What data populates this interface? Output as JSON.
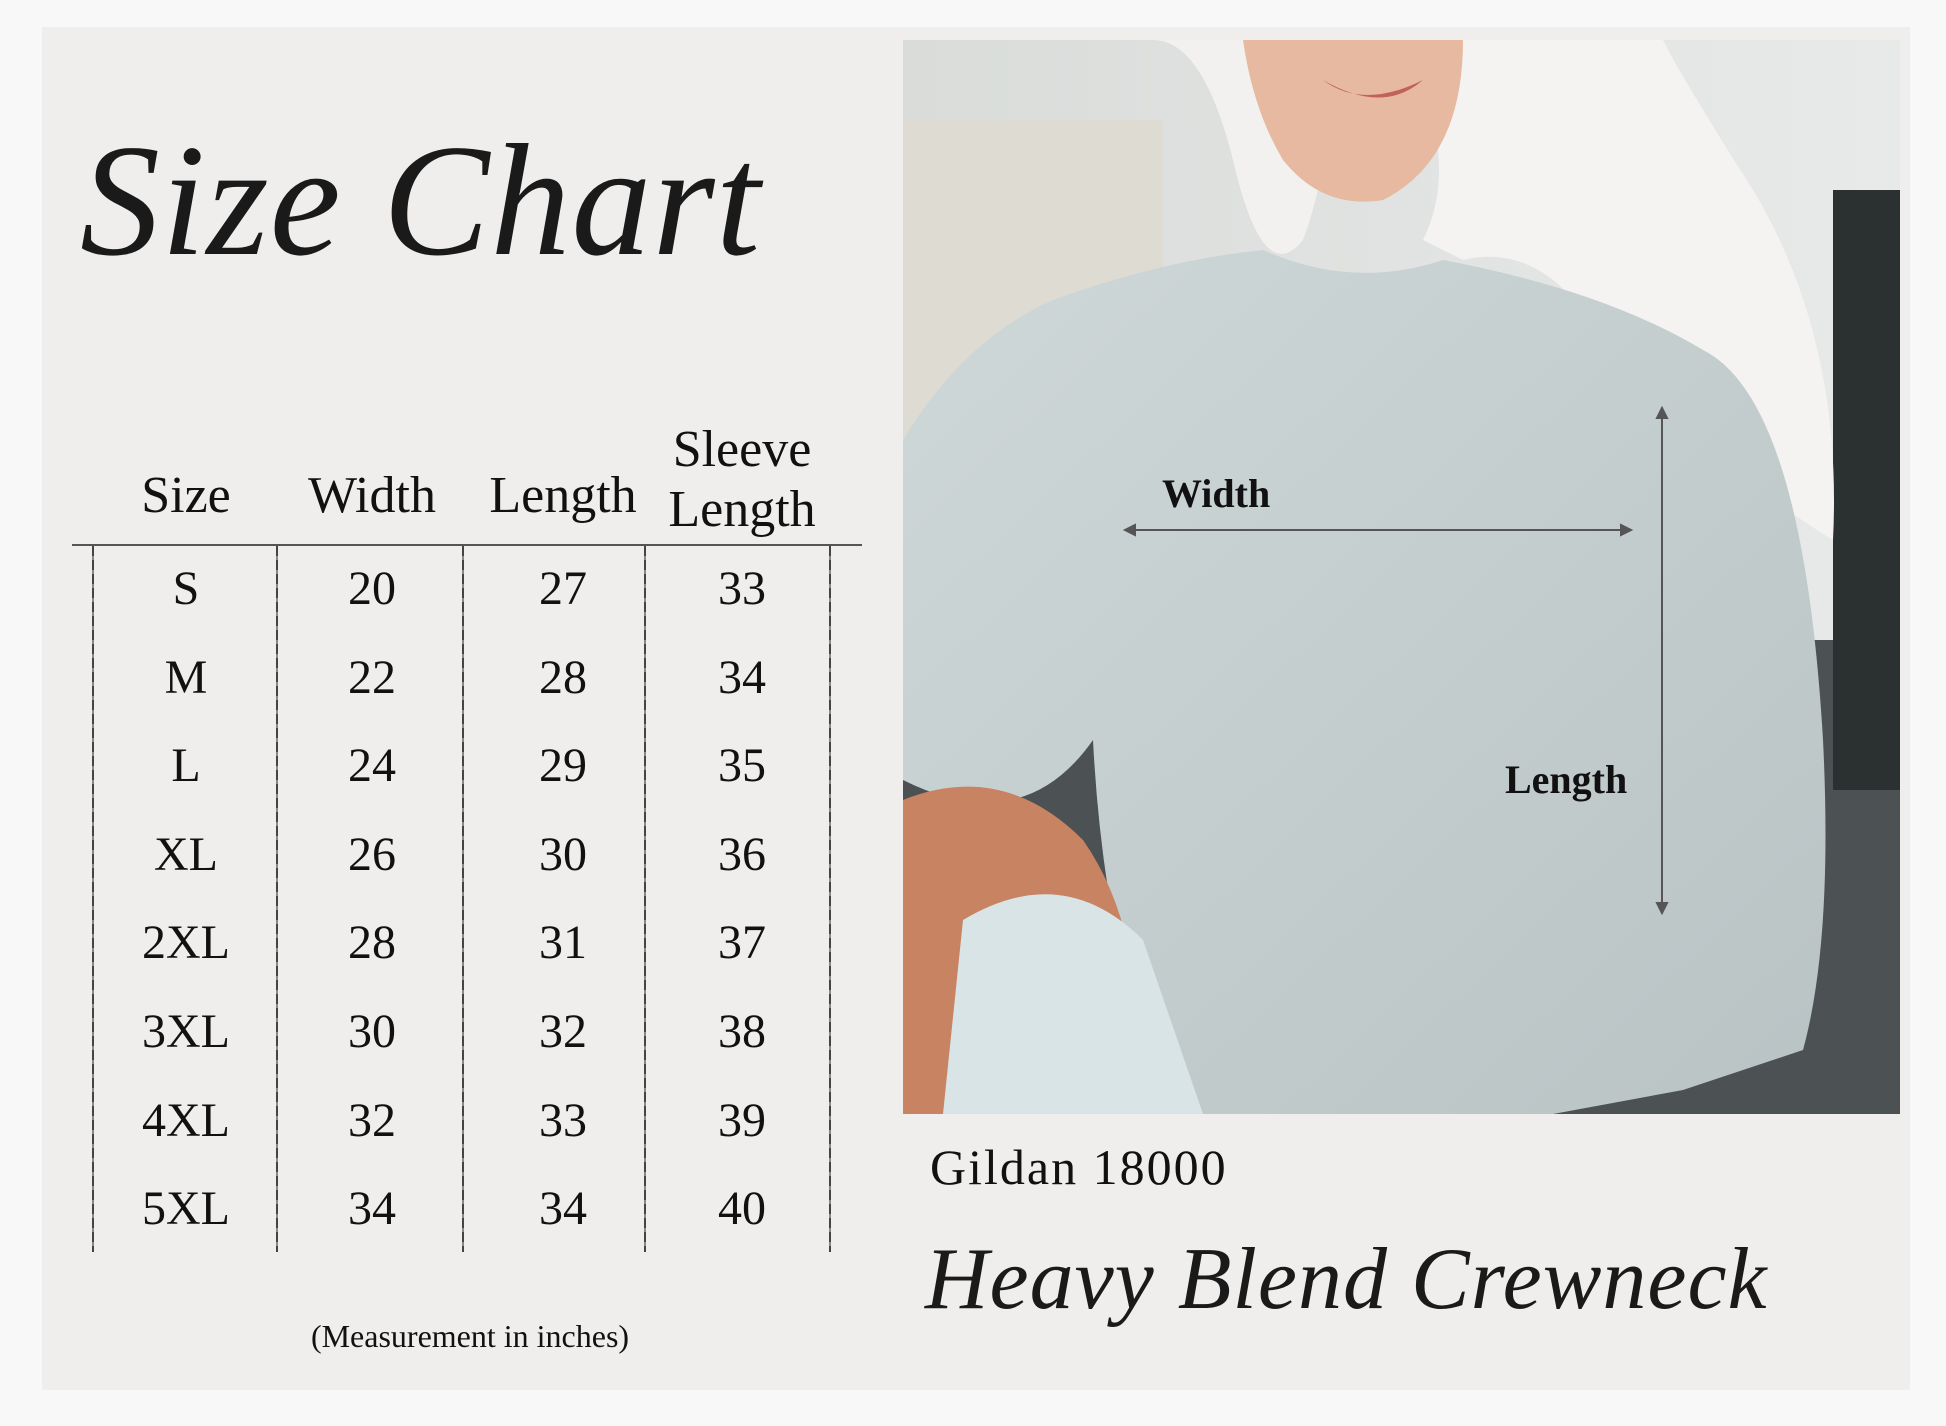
{
  "title": "Size Chart",
  "table": {
    "headers": [
      "Size",
      "Width",
      "Length",
      "Sleeve Length"
    ],
    "rows": [
      [
        "S",
        "20",
        "27",
        "33"
      ],
      [
        "M",
        "22",
        "28",
        "34"
      ],
      [
        "L",
        "24",
        "29",
        "35"
      ],
      [
        "XL",
        "26",
        "30",
        "36"
      ],
      [
        "2XL",
        "28",
        "31",
        "37"
      ],
      [
        "3XL",
        "30",
        "32",
        "38"
      ],
      [
        "4XL",
        "32",
        "33",
        "39"
      ],
      [
        "5XL",
        "34",
        "34",
        "40"
      ]
    ],
    "note": "(Measurement in inches)"
  },
  "photo": {
    "width_label": "Width",
    "length_label": "Length"
  },
  "product": {
    "model": "Gildan 18000",
    "name": "Heavy Blend Crewneck"
  },
  "colors": {
    "panel": "#efeeed",
    "sweatshirt": "#c7d0d0"
  }
}
